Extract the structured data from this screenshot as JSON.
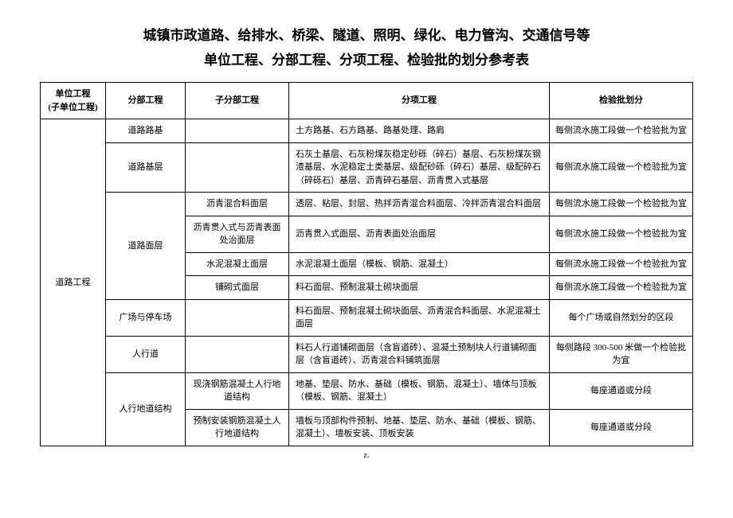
{
  "title": {
    "line1": "城镇市政道路、给排水、桥梁、隧道、照明、绿化、电力管沟、交通信号等",
    "line2": "单位工程、分部工程、分项工程、检验批的划分参考表"
  },
  "headers": {
    "c1": "单位工程\n(子单位工程)",
    "c2": "分部工程",
    "c3": "子分部工程",
    "c4": "分项工程",
    "c5": "检验批划分"
  },
  "unit_project": "道路工程",
  "rows": [
    {
      "fbgc": "道路路基",
      "zfb": "",
      "fxgc": "土方路基、石方路基、路基处理、路肩",
      "jyp": "每侧流水施工段做一个检验批为宜"
    },
    {
      "fbgc": "道路基层",
      "zfb": "",
      "fxgc": "石灰土基层、石灰粉煤灰稳定砂砾（碎石）基层、石灰粉煤灰钢渣基层、水泥稳定土类基层、级配砂砾（碎石）基层、级配碎石（碎砾石）基层、沥青碎石基层、沥青贯入式基层",
      "jyp": "每侧流水施工段做一个检验批为宜"
    },
    {
      "fbgc": "道路面层",
      "fbgc_rows": 4,
      "zfb": "沥青混合料面层",
      "fxgc": "透层、粘层、封层、热拌沥青混合料面层、冷拌沥青混合料面层",
      "jyp": "每侧流水施工段做一个检验批为宜"
    },
    {
      "zfb": "沥青贯入式与沥青表面处治面层",
      "fxgc": "沥青贯入式面层、沥青表面处治面层",
      "jyp": "每侧流水施工段做一个检验批为宜"
    },
    {
      "zfb": "水泥混凝土面层",
      "fxgc": "水泥混凝土面层（模板、钢筋、混凝土）",
      "jyp": "每侧流水施工段做一个检验批为宜"
    },
    {
      "zfb": "铺砌式面层",
      "fxgc": "料石面层、预制混凝土砌块面层",
      "jyp": "每侧流水施工段做一个检验批为宜"
    },
    {
      "fbgc": "广场与停车场",
      "zfb": "",
      "fxgc": "料石面层、预制混凝土砌块面层、沥青混合料面层、水泥混凝土面层",
      "jyp": "每个广场或自然划分的区段"
    },
    {
      "fbgc": "人行道",
      "zfb": "",
      "fxgc": "料石人行道铺砌面层（含盲道砖）、混凝土预制块人行道铺砌面层（含盲道砖）、沥青混合料铺筑面层",
      "jyp": "每侧路段 300-500 米做一个检验批为宜"
    },
    {
      "fbgc": "人行地道结构",
      "fbgc_rows": 2,
      "zfb": "现浇钢筋混凝土人行地道结构",
      "fxgc": "地基、垫层、防水、基础（模板、钢筋、混凝土）、墙体与顶板（模板、钢筋、混凝土）",
      "jyp": "每座通道或分段"
    },
    {
      "zfb": "预制安装钢筋混凝土人行地道结构",
      "fxgc": "墙板与顶部构件预制、地基、垫层、防水、基础（模板、钢筋、混凝土）、墙板安装、顶板安装",
      "jyp": "每座通道或分段"
    }
  ],
  "footer": "z."
}
